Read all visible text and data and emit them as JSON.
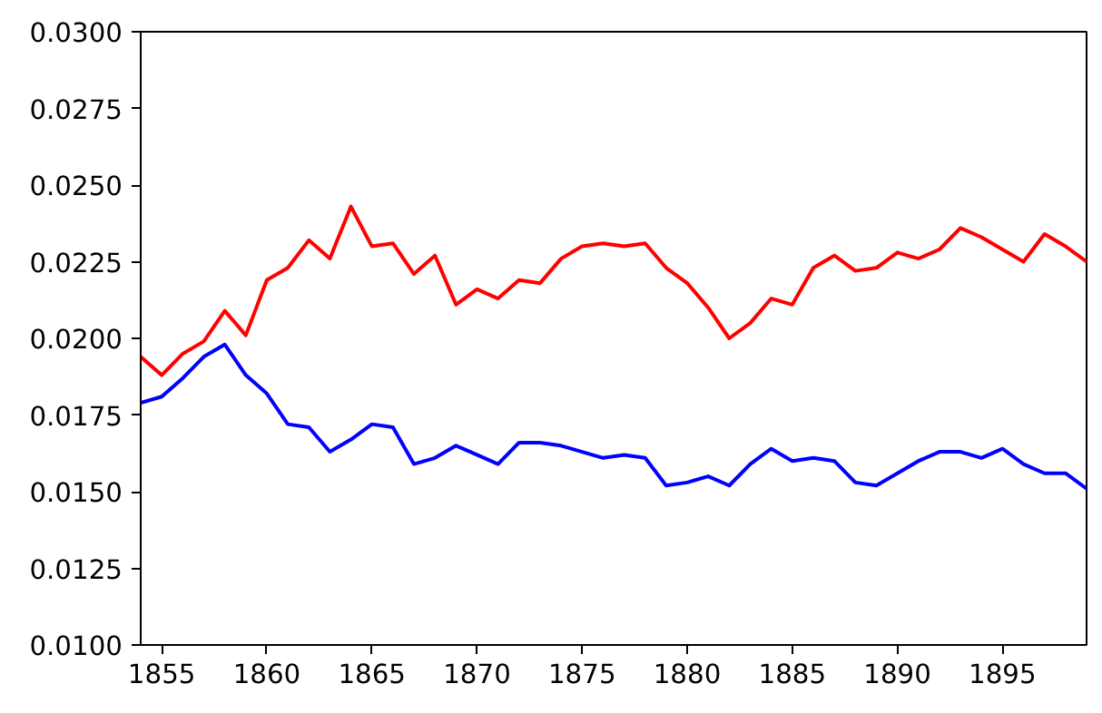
{
  "chart_data": {
    "type": "line",
    "x": [
      1854,
      1855,
      1856,
      1857,
      1858,
      1859,
      1860,
      1861,
      1862,
      1863,
      1864,
      1865,
      1866,
      1867,
      1868,
      1869,
      1870,
      1871,
      1872,
      1873,
      1874,
      1875,
      1876,
      1877,
      1878,
      1879,
      1880,
      1881,
      1882,
      1883,
      1884,
      1885,
      1886,
      1887,
      1888,
      1889,
      1890,
      1891,
      1892,
      1893,
      1894,
      1895,
      1896,
      1897,
      1898,
      1899
    ],
    "series": [
      {
        "color": "#ff0000",
        "values": [
          0.0194,
          0.0188,
          0.0195,
          0.0199,
          0.0209,
          0.0201,
          0.0219,
          0.0223,
          0.0232,
          0.0226,
          0.0243,
          0.023,
          0.0231,
          0.0221,
          0.0227,
          0.0211,
          0.0216,
          0.0213,
          0.0219,
          0.0218,
          0.0226,
          0.023,
          0.0231,
          0.023,
          0.0231,
          0.0223,
          0.0218,
          0.021,
          0.02,
          0.0205,
          0.0213,
          0.0211,
          0.0223,
          0.0227,
          0.0222,
          0.0223,
          0.0228,
          0.0226,
          0.0229,
          0.0236,
          0.0233,
          0.0229,
          0.0225,
          0.0234,
          0.023,
          0.0225
        ]
      },
      {
        "color": "#0000ff",
        "values": [
          0.0179,
          0.0181,
          0.0187,
          0.0194,
          0.0198,
          0.0188,
          0.0182,
          0.0172,
          0.0171,
          0.0163,
          0.0167,
          0.0172,
          0.0171,
          0.0159,
          0.0161,
          0.0165,
          0.0162,
          0.0159,
          0.0166,
          0.0166,
          0.0165,
          0.0163,
          0.0161,
          0.0162,
          0.0161,
          0.0152,
          0.0153,
          0.0155,
          0.0152,
          0.0159,
          0.0164,
          0.016,
          0.0161,
          0.016,
          0.0153,
          0.0152,
          0.0156,
          0.016,
          0.0163,
          0.0163,
          0.0161,
          0.0164,
          0.0159,
          0.0156,
          0.0156,
          0.0151
        ]
      }
    ],
    "xlim": [
      1854,
      1899
    ],
    "xticks": [
      1855,
      1860,
      1865,
      1870,
      1875,
      1880,
      1885,
      1890,
      1895
    ],
    "ylim": [
      0.01,
      0.03
    ],
    "yticks": [
      {
        "value": 0.01,
        "label": "0.0100"
      },
      {
        "value": 0.0125,
        "label": "0.0125"
      },
      {
        "value": 0.015,
        "label": "0.0150"
      },
      {
        "value": 0.0175,
        "label": "0.0175"
      },
      {
        "value": 0.02,
        "label": "0.0200"
      },
      {
        "value": 0.0225,
        "label": "0.0225"
      },
      {
        "value": 0.025,
        "label": "0.0250"
      },
      {
        "value": 0.0275,
        "label": "0.0275"
      },
      {
        "value": 0.03,
        "label": "0.0300"
      }
    ],
    "grid": false
  }
}
